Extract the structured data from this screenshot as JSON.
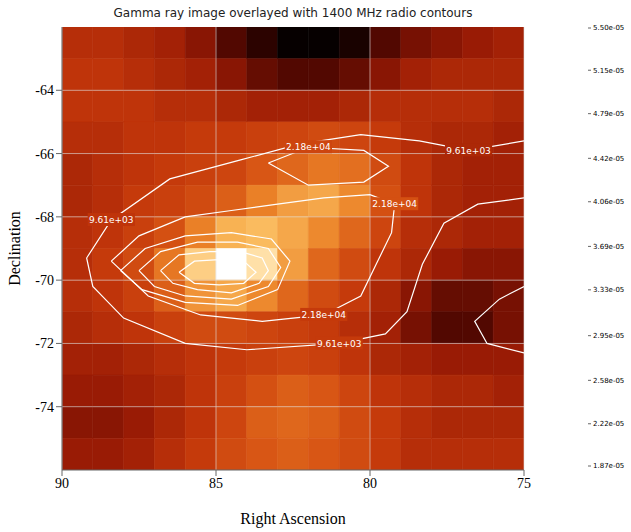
{
  "chart_data": {
    "type": "heatmap",
    "title": "Gamma ray image overlayed with 1400 MHz radio contours",
    "x_label": "Right Ascension",
    "y_label": "Declination",
    "xlim": [
      90,
      75
    ],
    "xticks": [
      90,
      85,
      80,
      75
    ],
    "ylim": [
      -76,
      -62
    ],
    "yticks": [
      -64,
      -66,
      -68,
      -70,
      -72,
      -74
    ],
    "grid": true,
    "cells": {
      "x_edges": [
        90,
        89,
        88,
        87,
        86,
        85,
        84,
        83,
        82,
        81,
        80,
        79,
        78,
        77,
        76,
        75
      ],
      "y_edges": [
        -62,
        -63,
        -64,
        -65,
        -66,
        -67,
        -68,
        -69,
        -70,
        -71,
        -72,
        -73,
        -74,
        -75,
        -76
      ],
      "values": [
        [
          3e-05,
          3e-05,
          2.9e-05,
          2.8e-05,
          2.6e-05,
          2.3e-05,
          2.1e-05,
          1.9e-05,
          1.9e-05,
          2e-05,
          2.3e-05,
          2.5e-05,
          2.6e-05,
          2.7e-05,
          2.8e-05
        ],
        [
          3.1e-05,
          3.1e-05,
          3e-05,
          2.9e-05,
          2.8e-05,
          2.6e-05,
          2.4e-05,
          2.3e-05,
          2.3e-05,
          2.4e-05,
          2.6e-05,
          2.8e-05,
          2.9e-05,
          2.9e-05,
          2.9e-05
        ],
        [
          3.1e-05,
          3.1e-05,
          3.1e-05,
          3e-05,
          3e-05,
          2.9e-05,
          2.8e-05,
          2.8e-05,
          2.8e-05,
          2.9e-05,
          3e-05,
          3e-05,
          3e-05,
          3e-05,
          2.9e-05
        ],
        [
          3e-05,
          3e-05,
          3.1e-05,
          3.1e-05,
          3.2e-05,
          3.2e-05,
          3.3e-05,
          3.4e-05,
          3.5e-05,
          3.4e-05,
          3.2e-05,
          3e-05,
          2.9e-05,
          2.9e-05,
          2.8e-05
        ],
        [
          2.9e-05,
          3e-05,
          3.1e-05,
          3.2e-05,
          3.3e-05,
          3.4e-05,
          3.7e-05,
          3.9e-05,
          4.1e-05,
          4e-05,
          3.5e-05,
          3.1e-05,
          2.9e-05,
          2.8e-05,
          2.8e-05
        ],
        [
          2.9e-05,
          3e-05,
          3.2e-05,
          3.3e-05,
          3.5e-05,
          3.8e-05,
          4.2e-05,
          4.5e-05,
          4.6e-05,
          4.3e-05,
          3.6e-05,
          3.1e-05,
          2.9e-05,
          2.8e-05,
          2.8e-05
        ],
        [
          3e-05,
          3.1e-05,
          3.3e-05,
          3.6e-05,
          4.2e-05,
          4.7e-05,
          4.8e-05,
          4.6e-05,
          4.3e-05,
          3.9e-05,
          3.4e-05,
          3e-05,
          2.9e-05,
          2.8e-05,
          2.8e-05
        ],
        [
          3e-05,
          3.2e-05,
          3.5e-05,
          4.1e-05,
          5e-05,
          5.5e-05,
          5.2e-05,
          4.5e-05,
          3.9e-05,
          3.5e-05,
          3.1e-05,
          2.9e-05,
          2.7e-05,
          2.6e-05,
          2.6e-05
        ],
        [
          3e-05,
          3.1e-05,
          3.3e-05,
          3.8e-05,
          4.4e-05,
          4.6e-05,
          4.3e-05,
          3.9e-05,
          3.5e-05,
          3.2e-05,
          2.9e-05,
          2.6e-05,
          2.4e-05,
          2.4e-05,
          2.5e-05
        ],
        [
          2.9e-05,
          3e-05,
          3.1e-05,
          3.3e-05,
          3.5e-05,
          3.5e-05,
          3.4e-05,
          3.3e-05,
          3.2e-05,
          3e-05,
          2.8e-05,
          2.5e-05,
          2.3e-05,
          2.3e-05,
          2.5e-05
        ],
        [
          2.8e-05,
          2.8e-05,
          2.9e-05,
          3e-05,
          3.1e-05,
          3.2e-05,
          3.3e-05,
          3.4e-05,
          3.3e-05,
          3.1e-05,
          2.9e-05,
          2.8e-05,
          2.7e-05,
          2.7e-05,
          2.7e-05
        ],
        [
          2.7e-05,
          2.7e-05,
          2.8e-05,
          2.9e-05,
          3.1e-05,
          3.3e-05,
          3.6e-05,
          3.8e-05,
          3.7e-05,
          3.4e-05,
          3.1e-05,
          3e-05,
          2.9e-05,
          2.9e-05,
          2.8e-05
        ],
        [
          2.6e-05,
          2.6e-05,
          2.7e-05,
          2.9e-05,
          3.1e-05,
          3.4e-05,
          3.8e-05,
          3.9e-05,
          3.8e-05,
          3.5e-05,
          3.2e-05,
          3e-05,
          2.9e-05,
          2.9e-05,
          2.9e-05
        ],
        [
          2.7e-05,
          2.7e-05,
          2.8e-05,
          3e-05,
          3.2e-05,
          3.5e-05,
          3.7e-05,
          3.8e-05,
          3.7e-05,
          3.5e-05,
          3.2e-05,
          3e-05,
          3e-05,
          3e-05,
          3e-05
        ]
      ]
    },
    "colorbar": {
      "lim": [
        1.87e-05,
        5.5e-05
      ],
      "ticks": [
        {
          "value": 1.87e-05,
          "label": "1.87e-05"
        },
        {
          "value": 2.22e-05,
          "label": "2.22e-05"
        },
        {
          "value": 2.58e-05,
          "label": "2.58e-05"
        },
        {
          "value": 2.95e-05,
          "label": "2.95e-05"
        },
        {
          "value": 3.33e-05,
          "label": "3.33e-05"
        },
        {
          "value": 3.69e-05,
          "label": "3.69e-05"
        },
        {
          "value": 4.06e-05,
          "label": "4.06e-05"
        },
        {
          "value": 4.42e-05,
          "label": "4.42e-05"
        },
        {
          "value": 4.79e-05,
          "label": "4.79e-05"
        },
        {
          "value": 5.15e-05,
          "label": "5.15e-05"
        },
        {
          "value": 5.5e-05,
          "label": "5.50e-05"
        }
      ]
    },
    "contours": [
      {
        "label": "9.61e+03",
        "paths": [
          [
            [
              75.0,
              -65.6
            ],
            [
              76.8,
              -65.9
            ],
            [
              78.4,
              -65.6
            ],
            [
              80.3,
              -65.4
            ],
            [
              82.3,
              -65.7
            ],
            [
              84.2,
              -66.2
            ],
            [
              86.5,
              -66.8
            ],
            [
              88.4,
              -68.1
            ],
            [
              89.2,
              -69.3
            ],
            [
              89.0,
              -70.2
            ],
            [
              88.0,
              -71.2
            ],
            [
              86.0,
              -72.0
            ],
            [
              84.0,
              -72.2
            ],
            [
              81.0,
              -72.0
            ],
            [
              79.5,
              -71.7
            ],
            [
              78.8,
              -71.0
            ],
            [
              78.3,
              -69.5
            ],
            [
              77.6,
              -68.2
            ],
            [
              76.5,
              -67.6
            ],
            [
              75.0,
              -67.4
            ]
          ],
          [
            [
              75.0,
              -70.2
            ],
            [
              75.8,
              -70.6
            ],
            [
              76.6,
              -71.3
            ],
            [
              76.2,
              -72.0
            ],
            [
              75.0,
              -72.3
            ]
          ]
        ]
      },
      {
        "label": "2.18e+04",
        "paths": [
          [
            [
              88.4,
              -69.4
            ],
            [
              87.5,
              -68.6
            ],
            [
              86.0,
              -68.0
            ],
            [
              84.5,
              -67.8
            ],
            [
              83.0,
              -67.6
            ],
            [
              81.5,
              -67.4
            ],
            [
              80.0,
              -67.3
            ],
            [
              79.2,
              -67.6
            ],
            [
              79.3,
              -68.5
            ],
            [
              79.8,
              -69.5
            ],
            [
              80.3,
              -70.5
            ],
            [
              81.5,
              -71.1
            ],
            [
              83.5,
              -71.3
            ],
            [
              85.5,
              -71.1
            ],
            [
              87.2,
              -70.5
            ],
            [
              88.4,
              -69.4
            ]
          ],
          [
            [
              83.3,
              -66.3
            ],
            [
              82.0,
              -65.8
            ],
            [
              80.2,
              -65.9
            ],
            [
              79.4,
              -66.4
            ],
            [
              80.2,
              -66.9
            ],
            [
              82.0,
              -67.0
            ],
            [
              83.3,
              -66.3
            ]
          ]
        ]
      },
      {
        "paths": [
          [
            [
              88.1,
              -69.7
            ],
            [
              87.3,
              -69.0
            ],
            [
              86.0,
              -68.6
            ],
            [
              84.5,
              -68.5
            ],
            [
              83.2,
              -68.7
            ],
            [
              82.6,
              -69.4
            ],
            [
              83.0,
              -70.3
            ],
            [
              84.3,
              -70.8
            ],
            [
              86.0,
              -70.7
            ],
            [
              87.4,
              -70.3
            ],
            [
              88.1,
              -69.7
            ]
          ]
        ]
      },
      {
        "paths": [
          [
            [
              87.5,
              -69.7
            ],
            [
              86.8,
              -69.1
            ],
            [
              85.6,
              -68.8
            ],
            [
              84.3,
              -68.8
            ],
            [
              83.3,
              -69.0
            ],
            [
              82.9,
              -69.6
            ],
            [
              83.3,
              -70.2
            ],
            [
              84.5,
              -70.6
            ],
            [
              86.0,
              -70.5
            ],
            [
              87.0,
              -70.2
            ],
            [
              87.5,
              -69.7
            ]
          ]
        ]
      },
      {
        "paths": [
          [
            [
              86.8,
              -69.7
            ],
            [
              86.2,
              -69.2
            ],
            [
              85.2,
              -69.1
            ],
            [
              84.2,
              -69.1
            ],
            [
              83.5,
              -69.3
            ],
            [
              83.3,
              -69.7
            ],
            [
              83.6,
              -70.1
            ],
            [
              84.5,
              -70.4
            ],
            [
              85.6,
              -70.3
            ],
            [
              86.4,
              -70.1
            ],
            [
              86.8,
              -69.7
            ]
          ]
        ]
      },
      {
        "paths": [
          [
            [
              86.2,
              -69.75
            ],
            [
              85.7,
              -69.4
            ],
            [
              84.9,
              -69.35
            ],
            [
              84.1,
              -69.4
            ],
            [
              83.7,
              -69.75
            ],
            [
              84.1,
              -70.1
            ],
            [
              84.9,
              -70.15
            ],
            [
              85.7,
              -70.1
            ],
            [
              86.2,
              -69.75
            ]
          ]
        ]
      }
    ]
  }
}
